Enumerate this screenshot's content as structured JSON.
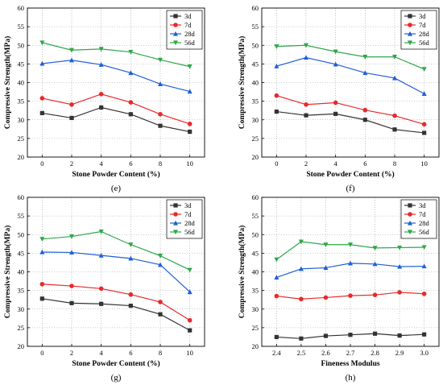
{
  "chart_data": [
    {
      "panel": "(e)",
      "type": "line",
      "xlabel": "Stone Powder Content (%)",
      "ylabel": "Compressive Strength(MPa)",
      "x": [
        0,
        2,
        4,
        6,
        8,
        10
      ],
      "xticks": [
        "0",
        "2",
        "4",
        "6",
        "8",
        "10"
      ],
      "xlim": [
        -1,
        11
      ],
      "ylim": [
        20,
        60
      ],
      "yticks": [
        20,
        25,
        30,
        35,
        40,
        45,
        50,
        55,
        60
      ],
      "grid": true,
      "legend_position": "top-right",
      "series": [
        {
          "name": "3d",
          "color": "#333333",
          "marker": "square",
          "values": [
            31.8,
            30.5,
            33.3,
            31.5,
            28.4,
            26.8
          ]
        },
        {
          "name": "7d",
          "color": "#e8292b",
          "marker": "circle",
          "values": [
            35.8,
            34.1,
            36.9,
            34.7,
            31.5,
            28.9
          ]
        },
        {
          "name": "28d",
          "color": "#1f5fd6",
          "marker": "triangle-up",
          "values": [
            45.1,
            46.0,
            44.8,
            42.6,
            39.6,
            37.6
          ]
        },
        {
          "name": "56d",
          "color": "#2ea84a",
          "marker": "triangle-down",
          "values": [
            50.7,
            48.7,
            49.0,
            48.2,
            46.1,
            44.3
          ]
        }
      ]
    },
    {
      "panel": "(f)",
      "type": "line",
      "xlabel": "Stone Powder Content (%)",
      "ylabel": "Compressive Strength(MPa)",
      "x": [
        0,
        2,
        4,
        6,
        8,
        10
      ],
      "xticks": [
        "0",
        "2",
        "4",
        "6",
        "8",
        "10"
      ],
      "xlim": [
        -1,
        11
      ],
      "ylim": [
        20,
        60
      ],
      "yticks": [
        20,
        25,
        30,
        35,
        40,
        45,
        50,
        55,
        60
      ],
      "grid": true,
      "legend_position": "top-right",
      "series": [
        {
          "name": "3d",
          "color": "#333333",
          "marker": "square",
          "values": [
            32.2,
            31.2,
            31.6,
            30.0,
            27.4,
            26.5
          ]
        },
        {
          "name": "7d",
          "color": "#e8292b",
          "marker": "circle",
          "values": [
            36.5,
            34.1,
            34.6,
            32.6,
            31.1,
            28.8
          ]
        },
        {
          "name": "28d",
          "color": "#1f5fd6",
          "marker": "triangle-up",
          "values": [
            44.4,
            46.7,
            44.9,
            42.6,
            41.2,
            37.0
          ]
        },
        {
          "name": "56d",
          "color": "#2ea84a",
          "marker": "triangle-down",
          "values": [
            49.7,
            50.0,
            48.3,
            46.9,
            46.9,
            43.6
          ]
        }
      ]
    },
    {
      "panel": "(g)",
      "type": "line",
      "xlabel": "Stone Powder Content (%)",
      "ylabel": "Compressive Strength(MPa)",
      "x": [
        0,
        2,
        4,
        6,
        8,
        10
      ],
      "xticks": [
        "0",
        "2",
        "4",
        "6",
        "8",
        "10"
      ],
      "xlim": [
        -1,
        11
      ],
      "ylim": [
        20,
        60
      ],
      "yticks": [
        20,
        25,
        30,
        35,
        40,
        45,
        50,
        55,
        60
      ],
      "grid": true,
      "legend_position": "top-right",
      "series": [
        {
          "name": "3d",
          "color": "#333333",
          "marker": "square",
          "values": [
            32.8,
            31.6,
            31.4,
            30.9,
            28.6,
            24.3
          ]
        },
        {
          "name": "7d",
          "color": "#e8292b",
          "marker": "circle",
          "values": [
            36.7,
            36.2,
            35.5,
            33.9,
            31.9,
            27.0
          ]
        },
        {
          "name": "28d",
          "color": "#1f5fd6",
          "marker": "triangle-up",
          "values": [
            45.3,
            45.2,
            44.4,
            43.6,
            41.9,
            34.6
          ]
        },
        {
          "name": "56d",
          "color": "#2ea84a",
          "marker": "triangle-down",
          "values": [
            48.8,
            49.5,
            50.8,
            47.3,
            44.3,
            40.5
          ]
        }
      ]
    },
    {
      "panel": "(h)",
      "type": "line",
      "xlabel": "Fineness Modulus",
      "ylabel": "Compressive Strength(MPa)",
      "x": [
        2.4,
        2.5,
        2.6,
        2.7,
        2.8,
        2.9,
        3.0
      ],
      "xticks": [
        "2.4",
        "2.5",
        "2.6",
        "2.7",
        "2.8",
        "2.9",
        "3.0"
      ],
      "xlim": [
        2.34,
        3.06
      ],
      "ylim": [
        20,
        60
      ],
      "yticks": [
        20,
        25,
        30,
        35,
        40,
        45,
        50,
        55,
        60
      ],
      "grid": true,
      "legend_position": "top-right",
      "series": [
        {
          "name": "3d",
          "color": "#333333",
          "marker": "square",
          "values": [
            22.5,
            22.1,
            22.8,
            23.1,
            23.4,
            22.9,
            23.2
          ]
        },
        {
          "name": "7d",
          "color": "#e8292b",
          "marker": "circle",
          "values": [
            33.5,
            32.7,
            33.1,
            33.6,
            33.8,
            34.5,
            34.1
          ]
        },
        {
          "name": "28d",
          "color": "#1f5fd6",
          "marker": "triangle-up",
          "values": [
            38.5,
            40.8,
            41.1,
            42.3,
            42.1,
            41.4,
            41.5
          ]
        },
        {
          "name": "56d",
          "color": "#2ea84a",
          "marker": "triangle-down",
          "values": [
            43.3,
            48.1,
            47.3,
            47.3,
            46.4,
            46.5,
            46.6
          ]
        }
      ]
    }
  ]
}
